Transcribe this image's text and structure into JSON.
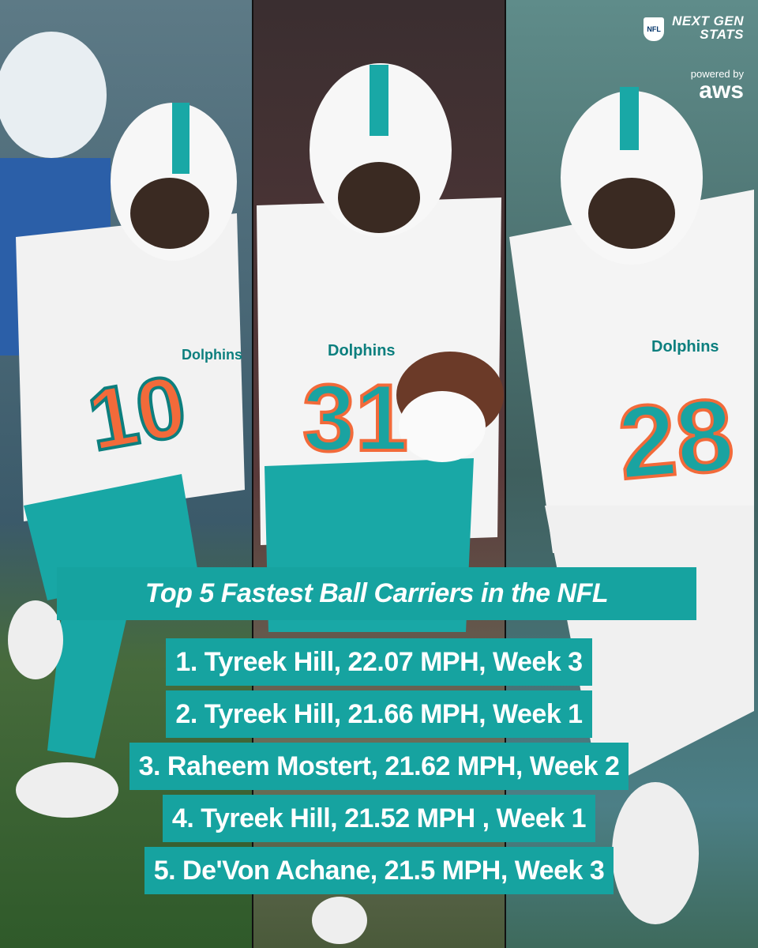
{
  "logo": {
    "league": "NFL",
    "line1": "NEXT GEN",
    "line2": "STATS",
    "powered": "powered by",
    "sponsor": "aws"
  },
  "players": [
    {
      "number": "10",
      "wordmark": "Dolphins"
    },
    {
      "number": "31",
      "wordmark": "Dolphins"
    },
    {
      "number": "28",
      "wordmark": "Dolphins"
    }
  ],
  "title": "Top 5 Fastest Ball Carriers in the NFL",
  "list": [
    "1. Tyreek Hill, 22.07 MPH, Week 3",
    "2. Tyreek Hill, 21.66 MPH, Week 1",
    "3. Raheem Mostert, 21.62 MPH, Week 2",
    "4. Tyreek Hill, 21.52 MPH , Week 1",
    "5. De'Von Achane, 21.5 MPH, Week 3"
  ]
}
